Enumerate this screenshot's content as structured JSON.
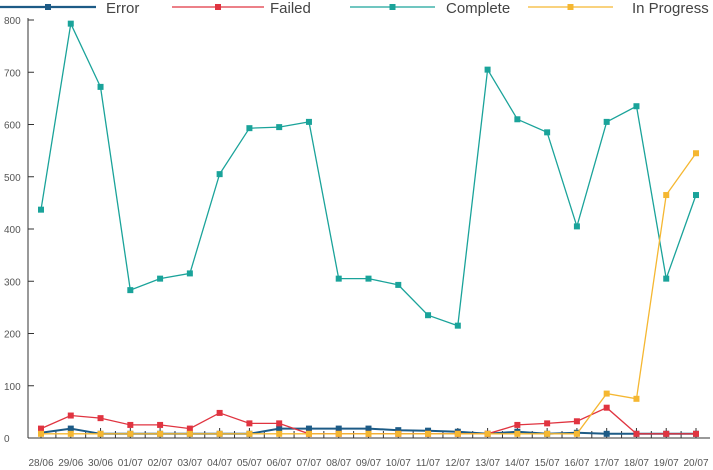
{
  "chart_data": {
    "type": "line",
    "title": "",
    "xlabel": "",
    "ylabel": "",
    "ylim": [
      0,
      800
    ],
    "yticks": [
      0,
      100,
      200,
      300,
      400,
      500,
      600,
      700,
      800
    ],
    "ytick_labels": [
      "0",
      "100",
      "200",
      "300",
      "400",
      "500",
      "600",
      "700",
      "800"
    ],
    "grid": false,
    "legend_position": "top",
    "categories": [
      "28/06",
      "29/06",
      "30/06",
      "01/07",
      "02/07",
      "03/07",
      "04/07",
      "05/07",
      "06/07",
      "07/07",
      "08/07",
      "09/07",
      "10/07",
      "11/07",
      "12/07",
      "13/07",
      "14/07",
      "15/07",
      "16/07",
      "17/07",
      "18/07",
      "19/07",
      "20/07"
    ],
    "series": [
      {
        "name": "Error",
        "color": "#1d5b86",
        "values": [
          10,
          18,
          8,
          8,
          8,
          8,
          8,
          8,
          18,
          18,
          18,
          18,
          15,
          14,
          12,
          8,
          12,
          8,
          10,
          8,
          8,
          8,
          8
        ]
      },
      {
        "name": "Failed",
        "color": "#e03440",
        "values": [
          18,
          43,
          38,
          25,
          25,
          18,
          48,
          28,
          28,
          8,
          8,
          8,
          8,
          8,
          8,
          8,
          25,
          28,
          32,
          58,
          8,
          8,
          8
        ]
      },
      {
        "name": "Complete",
        "color": "#1aa39a",
        "values": [
          437,
          793,
          672,
          283,
          305,
          315,
          505,
          593,
          595,
          605,
          305,
          305,
          293,
          235,
          215,
          705,
          610,
          585,
          405,
          605,
          635,
          305,
          465
        ]
      },
      {
        "name": "In Progress",
        "color": "#f5b731",
        "values": [
          8,
          8,
          8,
          8,
          8,
          8,
          8,
          8,
          8,
          8,
          8,
          8,
          8,
          8,
          8,
          8,
          8,
          8,
          8,
          85,
          75,
          465,
          545
        ]
      }
    ]
  }
}
